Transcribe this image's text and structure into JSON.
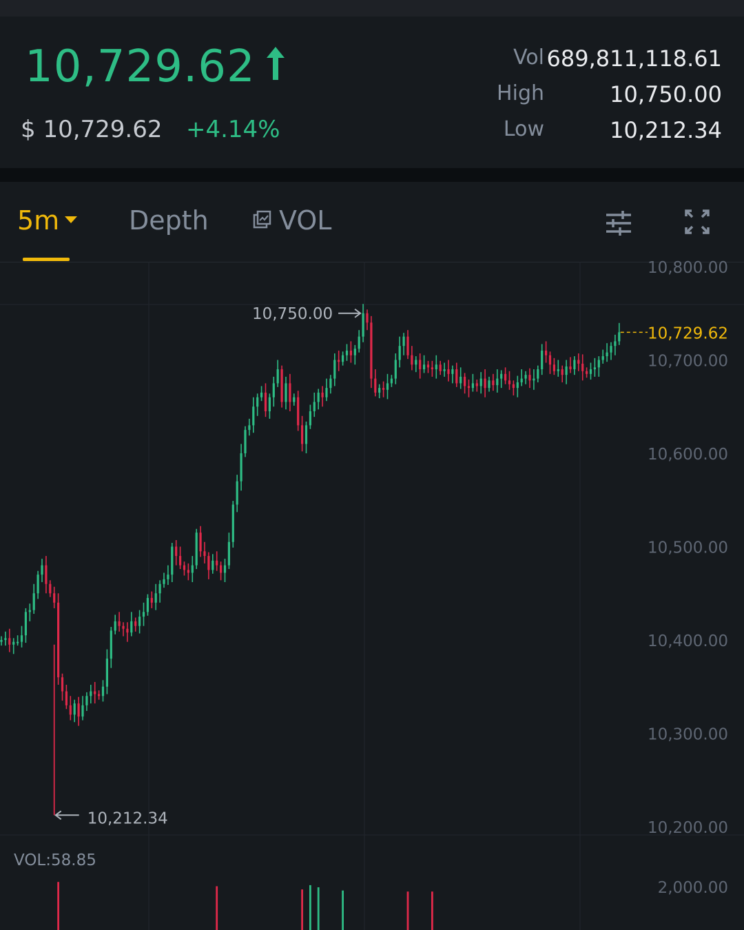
{
  "header": {
    "last_price": "10,729.62",
    "usd_price": "$ 10,729.62",
    "change_pct": "+4.14%",
    "stats": [
      {
        "label": "Vol",
        "value": "689,811,118.61"
      },
      {
        "label": "High",
        "value": "10,750.00"
      },
      {
        "label": "Low",
        "value": "10,212.34"
      }
    ]
  },
  "tabs": {
    "interval": "5m",
    "depth": "Depth",
    "vol": "VOL"
  },
  "icons": {
    "settings": "sliders-icon",
    "fullscreen": "expand-icon",
    "vol": "chart-toggle-icon"
  },
  "colors": {
    "up": "#2ebd85",
    "down": "#e0294a",
    "accent": "#f0b90b"
  },
  "chart_data": {
    "type": "candlestick",
    "interval": "5m",
    "y_ticks": [
      "10,800.00",
      "10,700.00",
      "10,600.00",
      "10,500.00",
      "10,400.00",
      "10,300.00",
      "10,200.00"
    ],
    "ylim": [
      10200,
      10800
    ],
    "high_marker": {
      "label": "10,750.00",
      "value": 10750
    },
    "low_marker": {
      "label": "10,212.34",
      "value": 10212.34
    },
    "last_price_label": "10,729.62",
    "last_price": 10729.62,
    "vol_label": "VOL:58.85",
    "vol_tick": "2,000.00",
    "close_series": [
      10400,
      10402,
      10395,
      10398,
      10398,
      10405,
      10430,
      10432,
      10450,
      10470,
      10480,
      10460,
      10450,
      10440,
      10360,
      10345,
      10330,
      10320,
      10332,
      10318,
      10330,
      10340,
      10345,
      10342,
      10340,
      10350,
      10380,
      10410,
      10420,
      10415,
      10412,
      10408,
      10420,
      10415,
      10425,
      10430,
      10445,
      10440,
      10450,
      10460,
      10465,
      10470,
      10500,
      10490,
      10480,
      10475,
      10472,
      10480,
      10515,
      10495,
      10490,
      10475,
      10485,
      10480,
      10472,
      10480,
      10505,
      10545,
      10570,
      10600,
      10625,
      10630,
      10650,
      10660,
      10665,
      10645,
      10660,
      10675,
      10690,
      10655,
      10675,
      10655,
      10660,
      10630,
      10610,
      10630,
      10645,
      10655,
      10665,
      10660,
      10670,
      10680,
      10700,
      10698,
      10705,
      10710,
      10705,
      10712,
      10725,
      10750,
      10740,
      10680,
      10665,
      10670,
      10668,
      10675,
      10680,
      10700,
      10715,
      10725,
      10705,
      10695,
      10700,
      10690,
      10695,
      10692,
      10690,
      10695,
      10688,
      10690,
      10685,
      10690,
      10675,
      10682,
      10672,
      10670,
      10675,
      10672,
      10680,
      10670,
      10678,
      10673,
      10680,
      10685,
      10678,
      10674,
      10670,
      10676,
      10680,
      10684,
      10678,
      10680,
      10690,
      10710,
      10705,
      10695,
      10688,
      10690,
      10684,
      10693,
      10690,
      10700,
      10696,
      10688,
      10685,
      10690,
      10692,
      10700,
      10704,
      10708,
      10715,
      10720,
      10729.62
    ],
    "volume_bars": [
      {
        "i": 14,
        "value": 2250
      },
      {
        "i": 53,
        "value": 2050
      },
      {
        "i": 76,
        "value": 2100
      },
      {
        "i": 78,
        "value": 2000
      },
      {
        "i": 74,
        "value": 1900
      },
      {
        "i": 84,
        "value": 1850
      },
      {
        "i": 100,
        "value": 1800
      },
      {
        "i": 106,
        "value": 1800
      }
    ]
  }
}
